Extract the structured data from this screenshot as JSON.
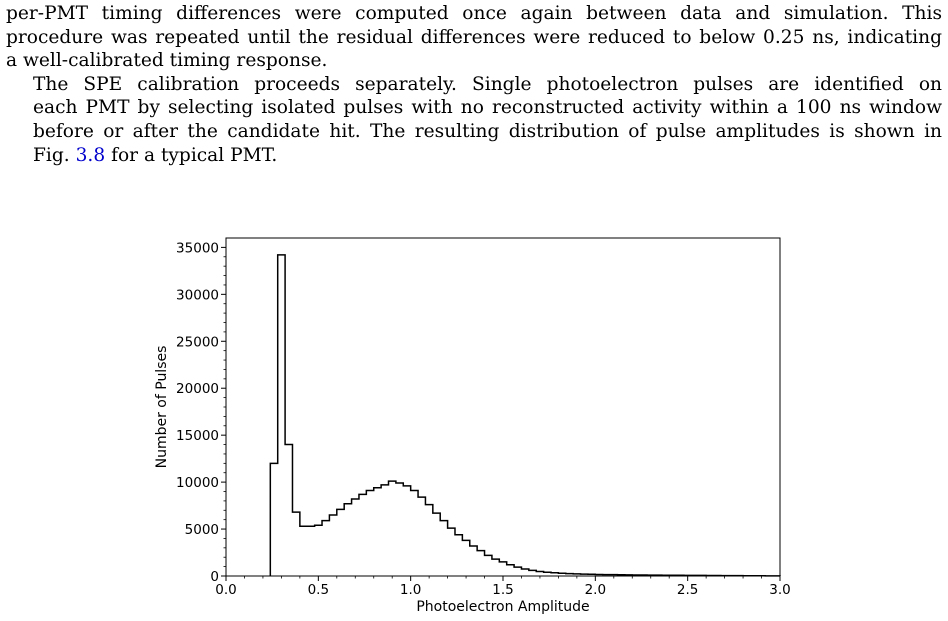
{
  "paragraph1": {
    "lines": [
      "per-PMT timing differences were computed once again between data and simulation. This",
      "procedure was repeated until the residual differences were reduced to below 0.25 ns, indicating",
      "a well-calibrated timing response."
    ]
  },
  "paragraph2": {
    "lines": [
      "The SPE calibration proceeds separately. Single photoelectron pulses are identified on",
      "each PMT by selecting isolated pulses with no reconstructed activity within a 100 ns window",
      "before or after the candidate hit. The resulting distribution of pulse amplitudes is shown in"
    ],
    "last_line_prefix": "Fig. ",
    "figure_ref": "3.8",
    "last_line_suffix": " for a typical PMT."
  },
  "chart_data": {
    "type": "histogram",
    "xlabel": "Photoelectron Amplitude",
    "ylabel": "Number of Pulses",
    "xlim": [
      0.0,
      3.0
    ],
    "ylim": [
      0,
      36000
    ],
    "xticks": [
      "0.0",
      "0.5",
      "1.0",
      "1.5",
      "2.0",
      "2.5",
      "3.0"
    ],
    "yticks": [
      "0",
      "5000",
      "10000",
      "15000",
      "20000",
      "25000",
      "30000",
      "35000"
    ],
    "bin_width": 0.04,
    "bin_start": 0.24,
    "values": [
      12000,
      34200,
      14000,
      6800,
      5300,
      5300,
      5400,
      5900,
      6500,
      7100,
      7700,
      8200,
      8700,
      9100,
      9400,
      9700,
      10100,
      9900,
      9600,
      9100,
      8400,
      7600,
      6700,
      5900,
      5100,
      4400,
      3800,
      3200,
      2700,
      2200,
      1800,
      1500,
      1200,
      950,
      750,
      600,
      480,
      400,
      340,
      290,
      250,
      220,
      200,
      180,
      160,
      150,
      140,
      130,
      120,
      110,
      100,
      95,
      90,
      85,
      80,
      75,
      70,
      65,
      60,
      55,
      50,
      45,
      40,
      35,
      30,
      25,
      20,
      15,
      10
    ],
    "line_color": "#000000",
    "grid": false,
    "legend": "none"
  }
}
